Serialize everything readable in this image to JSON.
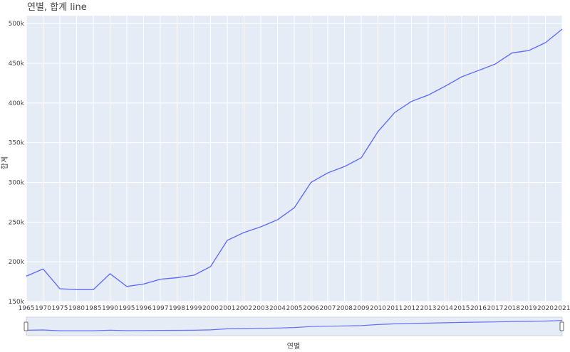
{
  "chart_data": {
    "type": "line",
    "title": "연별, 합계 line",
    "xlabel": "연별",
    "ylabel": "합계",
    "x": [
      "1965",
      "1970",
      "1975",
      "1980",
      "1985",
      "1990",
      "1995",
      "1996",
      "1997",
      "1998",
      "1999",
      "2000",
      "2001",
      "2002",
      "2003",
      "2004",
      "2005",
      "2006",
      "2007",
      "2008",
      "2009",
      "2010",
      "2011",
      "2012",
      "2013",
      "2014",
      "2015",
      "2016",
      "2017",
      "2018",
      "2019",
      "2020",
      "2021"
    ],
    "series": [
      {
        "values": [
          182000,
          191000,
          166000,
          165000,
          165000,
          185000,
          169000,
          172000,
          178000,
          180000,
          183000,
          194000,
          227000,
          237000,
          244000,
          253000,
          268000,
          300000,
          312000,
          320000,
          331000,
          364000,
          388000,
          402000,
          410000,
          421000,
          433000,
          441000,
          449000,
          463000,
          466000,
          476000,
          493000
        ],
        "color": "#636efa"
      }
    ],
    "ylim": [
      150000,
      510000
    ],
    "yticks": [
      150000,
      200000,
      250000,
      300000,
      350000,
      400000,
      450000,
      500000
    ],
    "ytick_labels": [
      "150k",
      "200k",
      "250k",
      "300k",
      "350k",
      "400k",
      "450k",
      "500k"
    ],
    "plot_background": "#e5ecf6",
    "grid": true,
    "legend": "none",
    "range_slider": true
  }
}
